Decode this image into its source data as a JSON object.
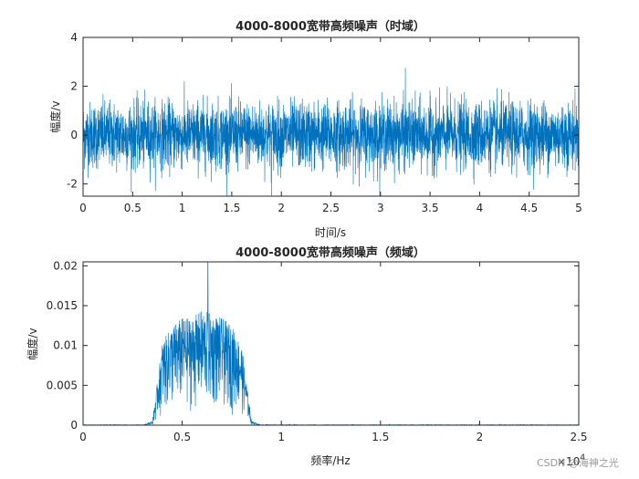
{
  "colors": {
    "series": "#0072BD",
    "axes": "#262626",
    "background": "#ffffff"
  },
  "watermark": "CSDN @海神之光",
  "chart_data": [
    {
      "type": "line",
      "title": "4000-8000宽带高频噪声（时域）",
      "xlabel": "时间/s",
      "ylabel": "幅度/v",
      "xlim": [
        0,
        5
      ],
      "ylim": [
        -2.5,
        4
      ],
      "xticks": [
        "0",
        "0.5",
        "1",
        "1.5",
        "2",
        "2.5",
        "3",
        "3.5",
        "4",
        "4.5",
        "5"
      ],
      "yticks": [
        "-2",
        "0",
        "2",
        "4"
      ],
      "grid": false,
      "series": [
        {
          "description_of_signal": "",
          "envelope": {
            "x": [
              0,
              5
            ],
            "typical_max": 1.6,
            "typical_min": -1.6,
            "peak_max": 2.75,
            "peak_min": -2.5
          }
        }
      ]
    },
    {
      "type": "line",
      "title": "4000-8000宽带高频噪声（频域）",
      "xlabel": "频率/Hz",
      "ylabel": "幅度/v",
      "xlim": [
        0,
        25000
      ],
      "ylim": [
        0,
        0.0205
      ],
      "xticks": [
        "0",
        "0.5",
        "1",
        "1.5",
        "2",
        "2.5"
      ],
      "x_exponent_label": "×10",
      "x_exponent_power": "4",
      "yticks": [
        "0",
        "0.005",
        "0.01",
        "0.015",
        "0.02"
      ],
      "grid": false,
      "series": [
        {
          "envelope": {
            "x": [
              3000,
              3500,
              4000,
              4500,
              5000,
              5500,
              6000,
              6500,
              7000,
              7500,
              8000,
              8500,
              9000
            ],
            "y": [
              0.0,
              0.0005,
              0.0105,
              0.0125,
              0.0135,
              0.0135,
              0.0145,
              0.014,
              0.0135,
              0.0125,
              0.01,
              0.0005,
              0.0
            ]
          },
          "peak": {
            "x": 6300,
            "y": 0.0205
          }
        }
      ]
    }
  ]
}
